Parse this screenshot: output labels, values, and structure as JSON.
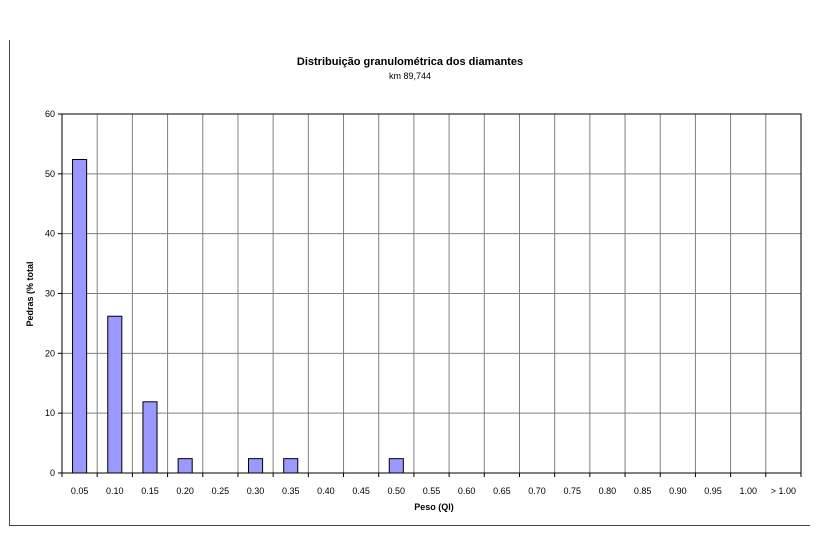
{
  "chart_data": {
    "type": "bar",
    "title": "Distribuição granulométrica dos diamantes",
    "subtitle": "km 89,744",
    "xlabel": "Peso (Ql)",
    "ylabel": "Pedras (% total",
    "categories": [
      "0.05",
      "0.10",
      "0.15",
      "0.20",
      "0.25",
      "0.30",
      "0.35",
      "0.40",
      "0.45",
      "0.50",
      "0.55",
      "0.60",
      "0.65",
      "0.70",
      "0.75",
      "0.80",
      "0.85",
      "0.90",
      "0.95",
      "1.00",
      "> 1.00"
    ],
    "values": [
      52.4,
      26.2,
      11.9,
      2.4,
      0,
      2.4,
      2.4,
      0,
      0,
      2.4,
      0,
      0,
      0,
      0,
      0,
      0,
      0,
      0,
      0,
      0,
      0
    ],
    "ylim": [
      0,
      60
    ],
    "yticks": [
      0,
      10,
      20,
      30,
      40,
      50,
      60
    ],
    "grid": true,
    "colors": {
      "bar_fill": "#9999ff",
      "bar_stroke": "#000000",
      "grid": "#808080"
    }
  }
}
